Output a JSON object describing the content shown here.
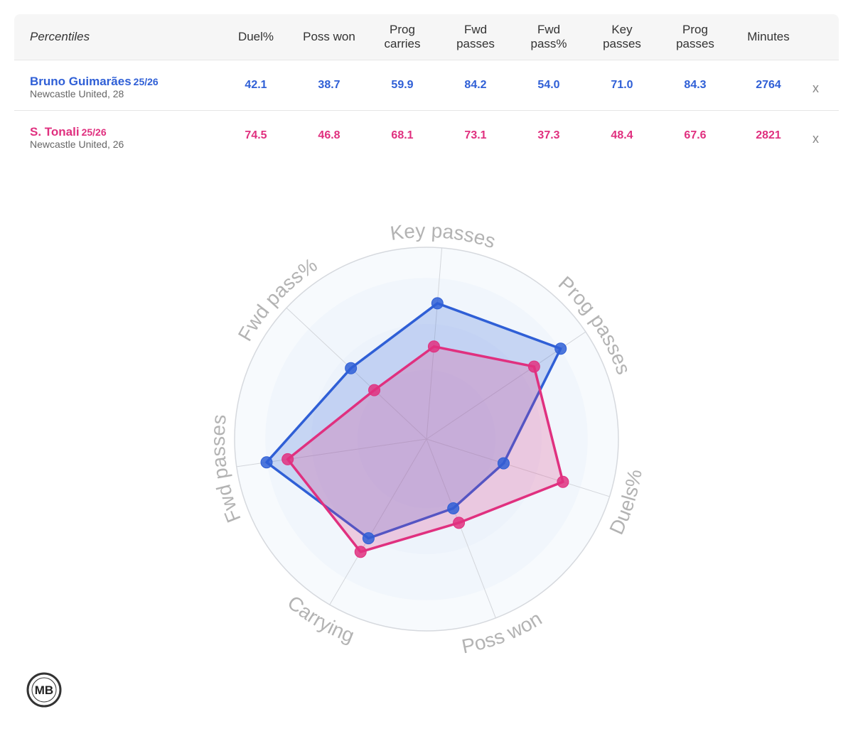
{
  "table": {
    "first_header": "Percentiles",
    "columns": [
      {
        "line1": "Duel%",
        "line2": ""
      },
      {
        "line1": "Poss won",
        "line2": ""
      },
      {
        "line1": "Prog",
        "line2": "carries"
      },
      {
        "line1": "Fwd",
        "line2": "passes"
      },
      {
        "line1": "Fwd",
        "line2": "pass%"
      },
      {
        "line1": "Key",
        "line2": "passes"
      },
      {
        "line1": "Prog",
        "line2": "passes"
      },
      {
        "line1": "Minutes",
        "line2": ""
      }
    ],
    "remove_label": "x"
  },
  "players": [
    {
      "name": "Bruno Guimarães",
      "season": "25/26",
      "team_age": "Newcastle United, 28",
      "color": "#2f5fd6",
      "values": [
        "42.1",
        "38.7",
        "59.9",
        "84.2",
        "54.0",
        "71.0",
        "84.3",
        "2764"
      ]
    },
    {
      "name": "S. Tonali",
      "season": "25/26",
      "team_age": "Newcastle United, 26",
      "color": "#e0307f",
      "values": [
        "74.5",
        "46.8",
        "68.1",
        "73.1",
        "37.3",
        "48.4",
        "67.6",
        "2821"
      ]
    }
  ],
  "chart_data": {
    "type": "radar",
    "axes": [
      "Key passes",
      "Prog passes",
      "Duels%",
      "Poss won",
      "Carrying",
      "Fwd passes",
      "Fwd pass%"
    ],
    "range": [
      0,
      100
    ],
    "series": [
      {
        "name": "Bruno Guimarães",
        "color": "#2f5fd6",
        "values": [
          71.0,
          84.3,
          42.1,
          38.7,
          59.9,
          84.2,
          54.0
        ]
      },
      {
        "name": "S. Tonali",
        "color": "#e0307f",
        "values": [
          48.4,
          67.6,
          74.5,
          46.8,
          68.1,
          73.1,
          37.3
        ]
      }
    ]
  },
  "logo": {
    "text": "MB"
  }
}
